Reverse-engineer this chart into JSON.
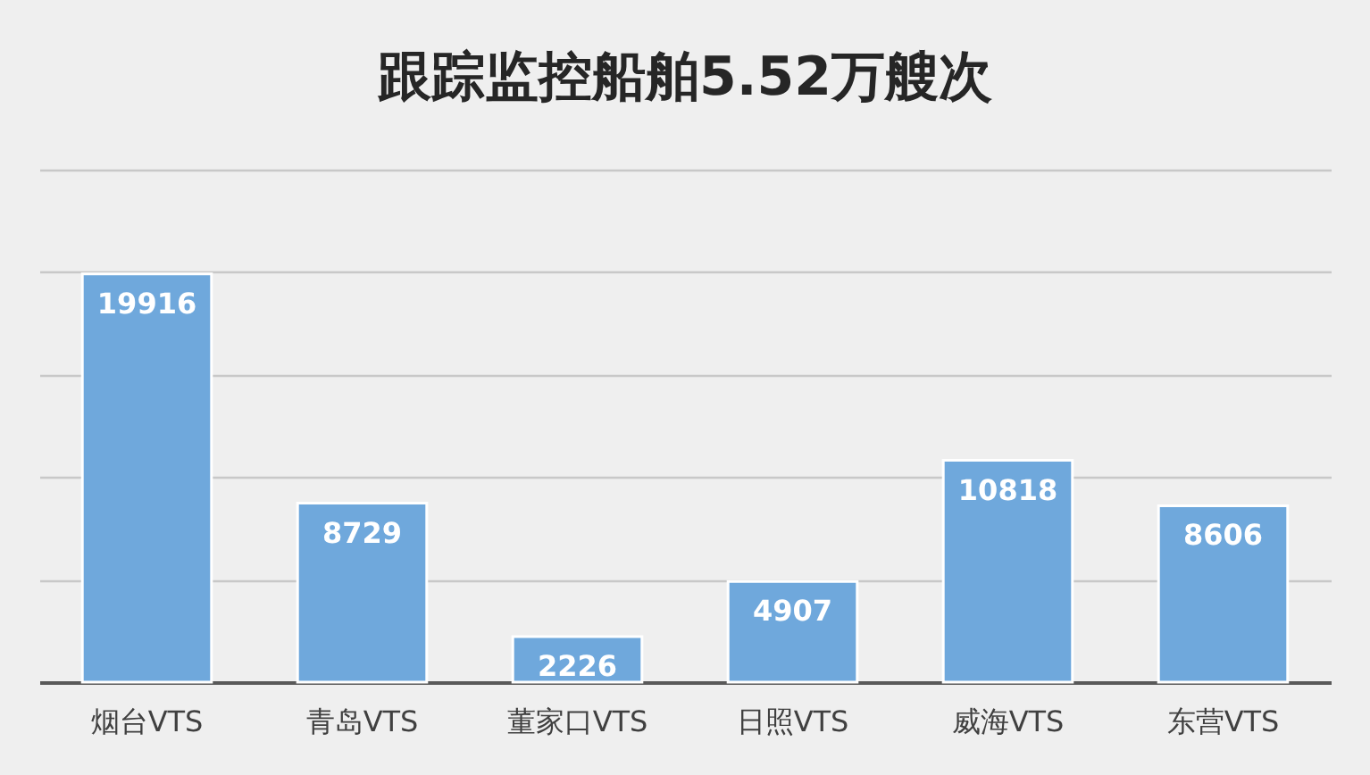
{
  "chart_data": {
    "type": "bar",
    "title": "跟踪监控船舶5.52万艘次",
    "categories": [
      "烟台VTS",
      "青岛VTS",
      "董家口VTS",
      "日照VTS",
      "威海VTS",
      "东营VTS"
    ],
    "values": [
      19916,
      8729,
      2226,
      4907,
      10818,
      8606
    ],
    "color": "#6fa8dc",
    "ylim": [
      0,
      25000
    ],
    "yticks": [
      {
        "value": 0,
        "label": null
      },
      {
        "value": 5000,
        "label": null
      },
      {
        "value": 10000,
        "label": null
      },
      {
        "value": 15000,
        "label": null
      },
      {
        "value": 20000,
        "label": null
      },
      {
        "value": 25000,
        "label": null
      }
    ],
    "grid": "y",
    "data_labels": true,
    "tick_labels": "x"
  }
}
